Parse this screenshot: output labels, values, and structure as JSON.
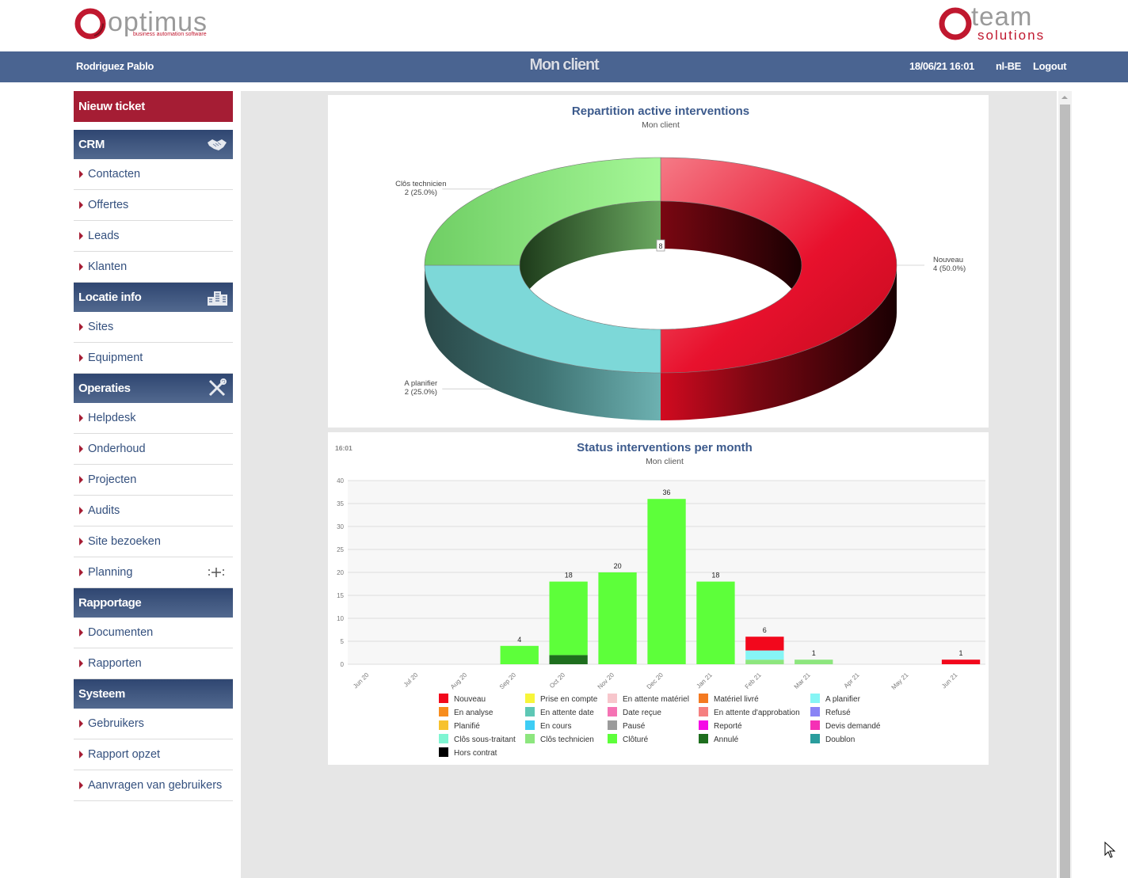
{
  "brand_left": {
    "name": "optimus",
    "tagline": "business automation software"
  },
  "brand_right": {
    "word1": "team",
    "word2": "solutions"
  },
  "header": {
    "user": "Rodriguez Pablo",
    "title": "Mon client",
    "datetime": "18/06/21 16:01",
    "language": "nl-BE",
    "logout": "Logout"
  },
  "sidebar": {
    "new_ticket": "Nieuw ticket",
    "sections": [
      {
        "title": "CRM",
        "icon": "handshake-icon",
        "items": [
          "Contacten",
          "Offertes",
          "Leads",
          "Klanten"
        ]
      },
      {
        "title": "Locatie info",
        "icon": "building-icon",
        "items": [
          "Sites",
          "Equipment"
        ]
      },
      {
        "title": "Operaties",
        "icon": "tools-icon",
        "items": [
          "Helpdesk",
          "Onderhoud",
          "Projecten",
          "Audits",
          "Site bezoeken",
          "Planning"
        ]
      },
      {
        "title": "Rapportage",
        "icon": "",
        "items": [
          "Documenten",
          "Rapporten"
        ]
      },
      {
        "title": "Systeem",
        "icon": "",
        "items": [
          "Gebruikers",
          "Rapport opzet",
          "Aanvragen van gebruikers"
        ]
      }
    ]
  },
  "colors": {
    "nav": "#4a6491",
    "accent": "#a51d34",
    "link": "#34507e"
  },
  "chart_data": [
    {
      "type": "pie",
      "title": "Repartition active interventions",
      "subtitle": "Mon client",
      "total_label": "8",
      "slices": [
        {
          "name": "Nouveau",
          "value": 4,
          "label": "4 (50.0%)",
          "color": "#e8112d"
        },
        {
          "name": "A planifier",
          "value": 2,
          "label": "2 (25.0%)",
          "color": "#7dd8d8"
        },
        {
          "name": "Clôs technicien",
          "value": 2,
          "label": "2 (25.0%)",
          "color": "#8de67e"
        }
      ]
    },
    {
      "type": "bar",
      "stacked": true,
      "title": "Status interventions per month",
      "subtitle": "Mon client",
      "time_label": "16:01",
      "ylim": [
        0,
        40
      ],
      "yticks": [
        0,
        5,
        10,
        15,
        20,
        25,
        30,
        35,
        40
      ],
      "categories": [
        "Jun 20",
        "Jul 20",
        "Aug 20",
        "Sep 20",
        "Oct 20",
        "Nov 20",
        "Dec 20",
        "Jan 21",
        "Feb 21",
        "Mar 21",
        "Apr 21",
        "May 21",
        "Jun 21"
      ],
      "totals": [
        "",
        "",
        "",
        "4",
        "18",
        "20",
        "36",
        "18",
        "6",
        "1",
        "",
        "",
        "1"
      ],
      "series": [
        {
          "name": "Annulé",
          "color": "#1e6e1e",
          "values": [
            0,
            0,
            0,
            0,
            2,
            0,
            0,
            0,
            0,
            0,
            0,
            0,
            0
          ]
        },
        {
          "name": "Clôturé",
          "color": "#5dff3a",
          "values": [
            0,
            0,
            0,
            4,
            16,
            20,
            36,
            18,
            0,
            0,
            0,
            0,
            0
          ]
        },
        {
          "name": "Clôs technicien",
          "color": "#8de67e",
          "values": [
            0,
            0,
            0,
            0,
            0,
            0,
            0,
            0,
            1,
            1,
            0,
            0,
            0
          ]
        },
        {
          "name": "A planifier",
          "color": "#86f5f5",
          "values": [
            0,
            0,
            0,
            0,
            0,
            0,
            0,
            0,
            2,
            0,
            0,
            0,
            0
          ]
        },
        {
          "name": "Nouveau",
          "color": "#f2081c",
          "values": [
            0,
            0,
            0,
            0,
            0,
            0,
            0,
            0,
            3,
            0,
            0,
            0,
            1
          ]
        }
      ],
      "legend": [
        {
          "name": "Nouveau",
          "color": "#f2081c"
        },
        {
          "name": "Prise en compte",
          "color": "#f7f53a"
        },
        {
          "name": "En attente matériel",
          "color": "#f7c6cc"
        },
        {
          "name": "Matériel livré",
          "color": "#f47a21"
        },
        {
          "name": "A planifier",
          "color": "#86f5f5"
        },
        {
          "name": "En analyse",
          "color": "#f78d1e"
        },
        {
          "name": "En attente date",
          "color": "#5ec7b5"
        },
        {
          "name": "Date reçue",
          "color": "#f573b4"
        },
        {
          "name": "En attente d'approbation",
          "color": "#f58080"
        },
        {
          "name": "Refusé",
          "color": "#8a84f5"
        },
        {
          "name": "Planifié",
          "color": "#f7c22e"
        },
        {
          "name": "En cours",
          "color": "#3ecdf5"
        },
        {
          "name": "Pausé",
          "color": "#9b9b9b"
        },
        {
          "name": "Reporté",
          "color": "#f50ae6"
        },
        {
          "name": "Devis demandé",
          "color": "#f530b5"
        },
        {
          "name": "Clôs sous-traitant",
          "color": "#7ff5d2"
        },
        {
          "name": "Clôs technicien",
          "color": "#8de67e"
        },
        {
          "name": "Clôturé",
          "color": "#5dff3a"
        },
        {
          "name": "Annulé",
          "color": "#1e6e1e"
        },
        {
          "name": "Doublon",
          "color": "#2a9d9d"
        },
        {
          "name": "Hors contrat",
          "color": "#000000"
        }
      ]
    }
  ]
}
